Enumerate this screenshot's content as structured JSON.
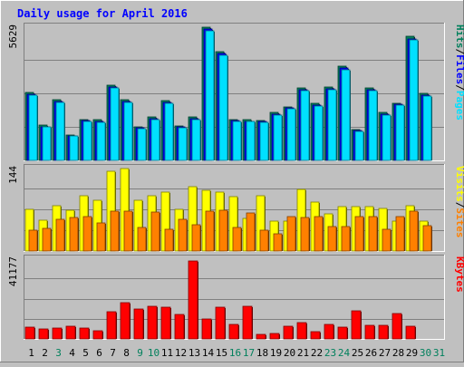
{
  "chart_data": {
    "type": "bar",
    "title": "Daily usage for April 2016",
    "categories": [
      "1",
      "2",
      "3",
      "4",
      "5",
      "6",
      "7",
      "8",
      "9",
      "10",
      "11",
      "12",
      "13",
      "14",
      "15",
      "16",
      "17",
      "18",
      "19",
      "20",
      "21",
      "22",
      "23",
      "24",
      "25",
      "26",
      "27",
      "28",
      "29",
      "30",
      "31"
    ],
    "weekend_days": [
      "3",
      "9",
      "10",
      "16",
      "17",
      "23",
      "24",
      "30",
      "31"
    ],
    "grid": true,
    "panels": [
      {
        "id": "top",
        "max_label": "5629",
        "ylim": [
          0,
          5629
        ],
        "right_labels": [
          {
            "text": "Hits",
            "color": "#00805c"
          },
          {
            "text": "/",
            "color": "#000000"
          },
          {
            "text": "Files",
            "color": "#0000ff"
          },
          {
            "text": "/",
            "color": "#000000"
          },
          {
            "text": "Pages",
            "color": "#00e0ff"
          }
        ],
        "series": [
          {
            "name": "Hits",
            "color": "#00805c",
            "values": [
              2860,
              1480,
              2560,
              1080,
              1730,
              1700,
              3170,
              2550,
              1410,
              1820,
              2500,
              1440,
              1810,
              5600,
              4560,
              1730,
              1700,
              1690,
              2000,
              2250,
              3050,
              2390,
              3090,
              3960,
              1290,
              3050,
              2010,
              2410,
              5200,
              2800,
              0
            ]
          },
          {
            "name": "Files",
            "color": "#0000ff",
            "values": [
              2780,
              1420,
              2480,
              1040,
              1680,
              1640,
              3080,
              2480,
              1360,
              1760,
              2440,
              1390,
              1760,
              5500,
              4480,
              1680,
              1650,
              1640,
              1940,
              2190,
              2970,
              2330,
              3010,
              3870,
              1240,
              2970,
              1950,
              2350,
              5100,
              2730,
              0
            ]
          },
          {
            "name": "Pages",
            "color": "#00e0ff",
            "values": [
              2740,
              1400,
              2440,
              1020,
              1650,
              1610,
              3040,
              2440,
              1330,
              1730,
              2410,
              1360,
              1730,
              5440,
              4420,
              1650,
              1620,
              1610,
              1910,
              2160,
              2930,
              2300,
              2970,
              3820,
              1220,
              2930,
              1920,
              2320,
              5050,
              2700,
              0
            ]
          }
        ]
      },
      {
        "id": "middle",
        "max_label": "144",
        "ylim": [
          0,
          144
        ],
        "right_labels": [
          {
            "text": "Visits",
            "color": "#ffff00"
          },
          {
            "text": "/",
            "color": "#000000"
          },
          {
            "text": "Sites",
            "color": "#ff8000"
          }
        ],
        "series": [
          {
            "name": "Visits",
            "color": "#ffff00",
            "values": [
              72,
              53,
              78,
              70,
              96,
              87,
              137,
              142,
              88,
              96,
              101,
              72,
              111,
              105,
              102,
              94,
              57,
              95,
              51,
              51,
              106,
              84,
              64,
              76,
              76,
              76,
              73,
              51,
              79,
              51,
              0
            ]
          },
          {
            "name": "Sites",
            "color": "#ff8000",
            "values": [
              36,
              39,
              55,
              58,
              59,
              49,
              69,
              69,
              41,
              68,
              37,
              54,
              46,
              69,
              71,
              41,
              65,
              36,
              29,
              59,
              58,
              59,
              43,
              43,
              60,
              59,
              37,
              59,
              69,
              44,
              0
            ]
          }
        ]
      },
      {
        "id": "bottom",
        "max_label": "41177",
        "ylim": [
          0,
          41177
        ],
        "right_labels": [
          {
            "text": "KBytes",
            "color": "#ff0000"
          }
        ],
        "series": [
          {
            "name": "KBytes",
            "color": "#ff0000",
            "values": [
              5900,
              4900,
              5600,
              6400,
              5500,
              4200,
              13800,
              18500,
              15200,
              16700,
              16000,
              12300,
              39600,
              10300,
              16000,
              7400,
              16800,
              2400,
              2900,
              6400,
              8200,
              3600,
              7600,
              6000,
              14200,
              6800,
              7000,
              12900,
              6600,
              0,
              0
            ]
          }
        ]
      }
    ]
  }
}
